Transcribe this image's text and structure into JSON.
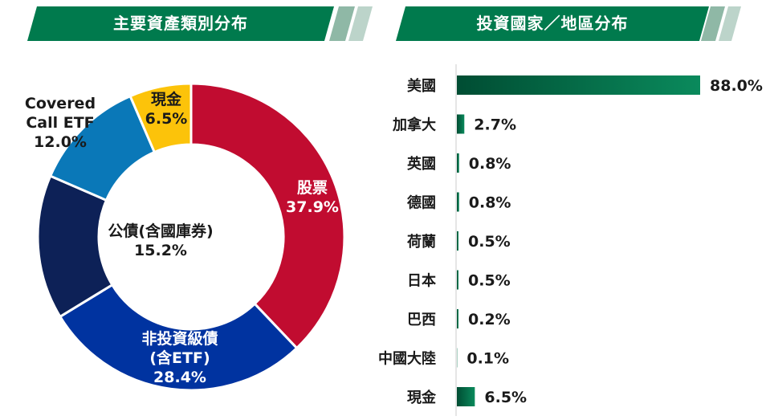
{
  "banners": {
    "left_title": "主要資產類別分布",
    "right_title": "投資國家／地區分布"
  },
  "colors": {
    "banner_green": "#007a4d",
    "banner_stripe": "#8fb8a6",
    "bar_green_dark": "#004d33",
    "bar_green_light": "#0a8a5c",
    "text": "#1a1a1a"
  },
  "chart_data": [
    {
      "type": "pie",
      "variant": "donut",
      "title": "主要資產類別分布",
      "slices": [
        {
          "label": "股票",
          "value": 37.9,
          "display": "37.9%",
          "color": "#c10c30",
          "label_color": "#ffffff"
        },
        {
          "label": "非投資級債(含ETF)",
          "label_lines": [
            "非投資級債",
            "(含ETF)"
          ],
          "value": 28.4,
          "display": "28.4%",
          "color": "#0033a0",
          "label_color": "#ffffff"
        },
        {
          "label": "公債(含國庫券)",
          "value": 15.2,
          "display": "15.2%",
          "color": "#0d2157",
          "label_color": "#1a1a1a"
        },
        {
          "label": "Covered Call ETF",
          "label_lines": [
            "Covered",
            "Call ETF"
          ],
          "value": 12.0,
          "display": "12.0%",
          "color": "#0a78b8",
          "label_color": "#1a1a1a"
        },
        {
          "label": "現金",
          "value": 6.5,
          "display": "6.5%",
          "color": "#fcc30a",
          "label_color": "#1a1a1a"
        }
      ]
    },
    {
      "type": "bar",
      "orientation": "horizontal",
      "title": "投資國家／地區分布",
      "categories": [
        "美國",
        "加拿大",
        "英國",
        "德國",
        "荷蘭",
        "日本",
        "巴西",
        "中國大陸",
        "現金"
      ],
      "values": [
        88.0,
        2.7,
        0.8,
        0.8,
        0.5,
        0.5,
        0.2,
        0.1,
        6.5
      ],
      "value_labels": [
        "88.0%",
        "2.7%",
        "0.8%",
        "0.8%",
        "0.5%",
        "0.5%",
        "0.2%",
        "0.1%",
        "6.5%"
      ],
      "unit": "%",
      "xlim": [
        0,
        88.0
      ]
    }
  ]
}
